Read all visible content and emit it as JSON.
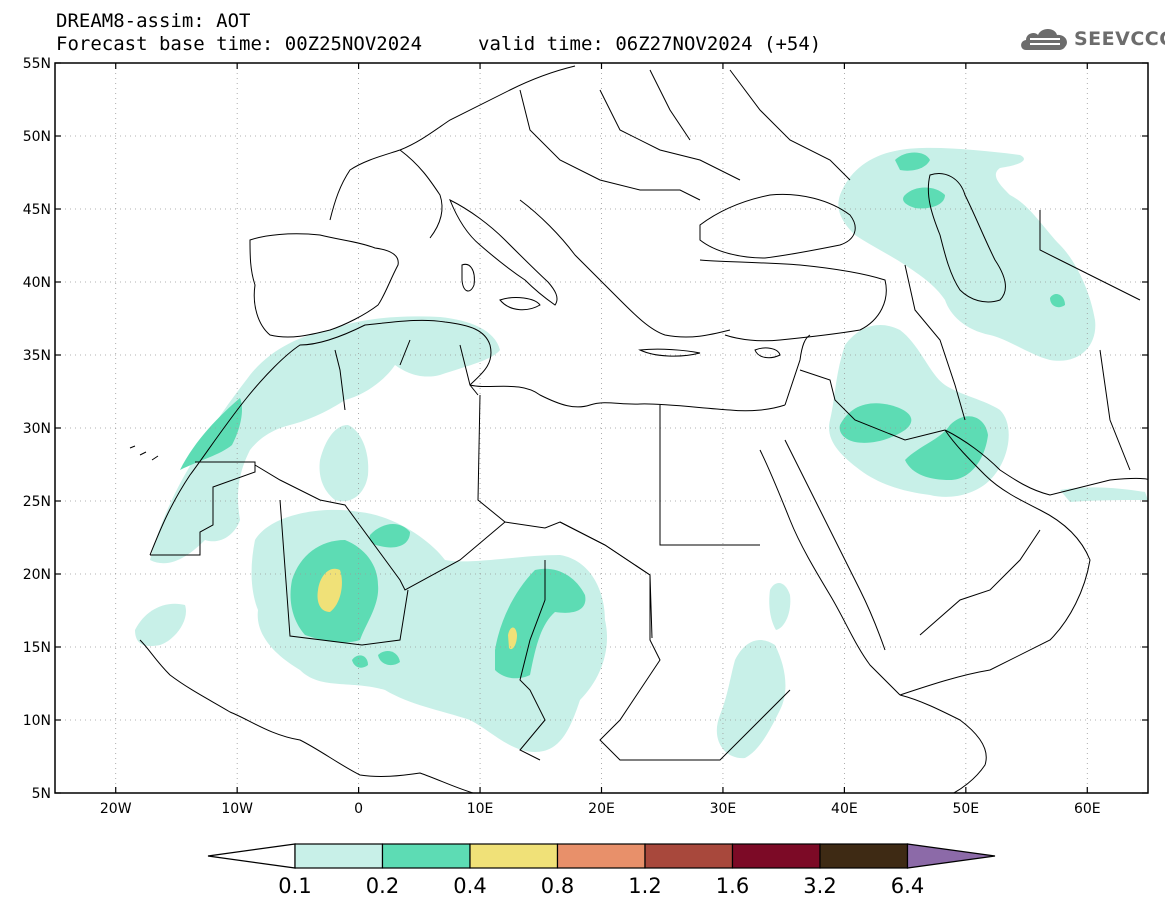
{
  "header": {
    "title_line1": "DREAM8-assim: AOT",
    "base_time": "Forecast base time: 00Z25NOV2024",
    "valid_time": "valid time: 06Z27NOV2024 (+54)"
  },
  "logo": {
    "text": "SEEVCCC",
    "icon": "cloud-logo-icon"
  },
  "map": {
    "lon_range": [
      -25,
      65
    ],
    "lat_range": [
      5,
      55
    ],
    "lat_labels": [
      "5N",
      "10N",
      "15N",
      "20N",
      "25N",
      "30N",
      "35N",
      "40N",
      "45N",
      "50N",
      "55N"
    ],
    "lon_labels": [
      "20W",
      "10W",
      "0",
      "10E",
      "20E",
      "30E",
      "40E",
      "50E",
      "60E"
    ],
    "colors": {
      "c01": "#c8f0e8",
      "c02": "#5ddcb4",
      "c04": "#f0e178",
      "land_border": "#000000",
      "grid": "#999999"
    }
  },
  "colorbar": {
    "labels": [
      "0.1",
      "0.2",
      "0.4",
      "0.8",
      "1.2",
      "1.6",
      "3.2",
      "6.4"
    ],
    "colors": [
      "#c8f0e8",
      "#5ddcb4",
      "#f0e178",
      "#e8906a",
      "#a8483c",
      "#7c0a26",
      "#3e2a14"
    ],
    "under_color": "#ffffff",
    "over_color": "#8c6aa8"
  }
}
